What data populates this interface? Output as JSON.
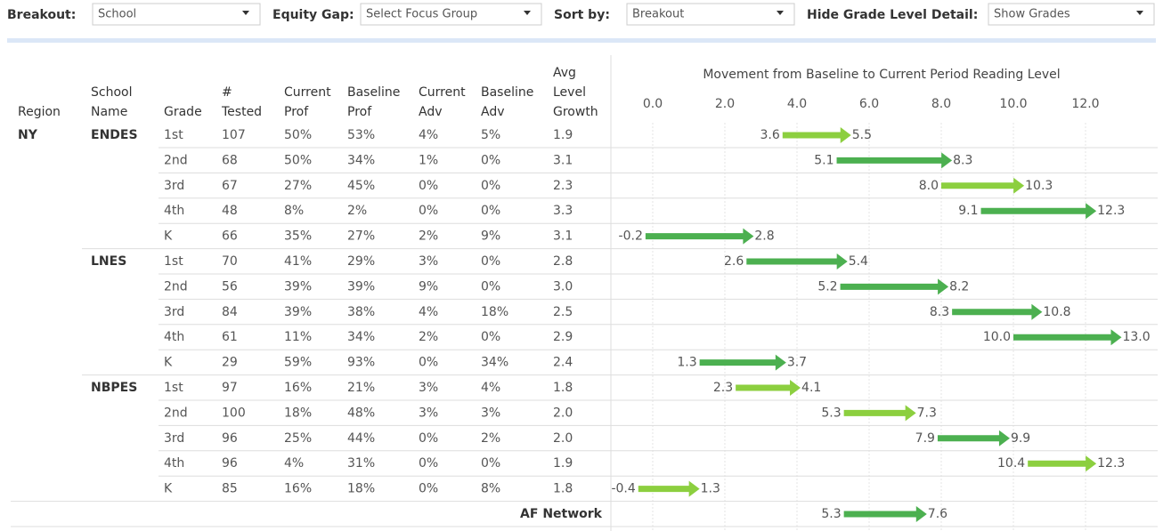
{
  "filters": [
    {
      "label": "Breakout:",
      "value": "School"
    },
    {
      "label": "Equity Gap:",
      "value": "Select Focus Group"
    },
    {
      "label": "Sort by:",
      "value": "Breakout"
    },
    {
      "label": "Hide Grade Level Detail:",
      "value": "Show Grades"
    }
  ],
  "table": {
    "columns": [
      [
        "Region"
      ],
      [
        "School",
        "Name"
      ],
      [
        "Grade"
      ],
      [
        "#",
        "Tested"
      ],
      [
        "Current",
        "Prof"
      ],
      [
        "Baseline",
        "Prof"
      ],
      [
        "Current",
        "Adv"
      ],
      [
        "Baseline",
        "Adv"
      ],
      [
        "Avg",
        "Level",
        "Growth"
      ]
    ],
    "rows": [
      {
        "region": "NY",
        "school": "ENDES",
        "grade": "1st",
        "tested": "107",
        "cur_prof": "50%",
        "base_prof": "53%",
        "cur_adv": "4%",
        "base_adv": "5%",
        "growth": "1.9",
        "start": "3.6",
        "end": "5.5",
        "color": "#8ccf3f"
      },
      {
        "grade": "2nd",
        "tested": "68",
        "cur_prof": "50%",
        "base_prof": "34%",
        "cur_adv": "1%",
        "base_adv": "0%",
        "growth": "3.1",
        "start": "5.1",
        "end": "8.3",
        "color": "#4cb050"
      },
      {
        "grade": "3rd",
        "tested": "67",
        "cur_prof": "27%",
        "base_prof": "45%",
        "cur_adv": "0%",
        "base_adv": "0%",
        "growth": "2.3",
        "start": "8.0",
        "end": "10.3",
        "color": "#8ccf3f"
      },
      {
        "grade": "4th",
        "tested": "48",
        "cur_prof": "8%",
        "base_prof": "2%",
        "cur_adv": "0%",
        "base_adv": "0%",
        "growth": "3.3",
        "start": "9.1",
        "end": "12.3",
        "color": "#4cb050"
      },
      {
        "grade": "K",
        "tested": "66",
        "cur_prof": "35%",
        "base_prof": "27%",
        "cur_adv": "2%",
        "base_adv": "9%",
        "growth": "3.1",
        "start": "-0.2",
        "end": "2.8",
        "color": "#4cb050"
      },
      {
        "school": "LNES",
        "grade": "1st",
        "tested": "70",
        "cur_prof": "41%",
        "base_prof": "29%",
        "cur_adv": "3%",
        "base_adv": "0%",
        "growth": "2.8",
        "start": "2.6",
        "end": "5.4",
        "color": "#4cb050"
      },
      {
        "grade": "2nd",
        "tested": "56",
        "cur_prof": "39%",
        "base_prof": "39%",
        "cur_adv": "9%",
        "base_adv": "0%",
        "growth": "3.0",
        "start": "5.2",
        "end": "8.2",
        "color": "#4cb050"
      },
      {
        "grade": "3rd",
        "tested": "84",
        "cur_prof": "39%",
        "base_prof": "38%",
        "cur_adv": "4%",
        "base_adv": "18%",
        "growth": "2.5",
        "start": "8.3",
        "end": "10.8",
        "color": "#4cb050"
      },
      {
        "grade": "4th",
        "tested": "61",
        "cur_prof": "11%",
        "base_prof": "34%",
        "cur_adv": "2%",
        "base_adv": "0%",
        "growth": "2.9",
        "start": "10.0",
        "end": "13.0",
        "color": "#4cb050"
      },
      {
        "grade": "K",
        "tested": "29",
        "cur_prof": "59%",
        "base_prof": "93%",
        "cur_adv": "0%",
        "base_adv": "34%",
        "growth": "2.4",
        "start": "1.3",
        "end": "3.7",
        "color": "#4cb050"
      },
      {
        "school": "NBPES",
        "grade": "1st",
        "tested": "97",
        "cur_prof": "16%",
        "base_prof": "21%",
        "cur_adv": "3%",
        "base_adv": "4%",
        "growth": "1.8",
        "start": "2.3",
        "end": "4.1",
        "color": "#8ccf3f"
      },
      {
        "grade": "2nd",
        "tested": "100",
        "cur_prof": "18%",
        "base_prof": "48%",
        "cur_adv": "3%",
        "base_adv": "3%",
        "growth": "2.0",
        "start": "5.3",
        "end": "7.3",
        "color": "#8ccf3f"
      },
      {
        "grade": "3rd",
        "tested": "96",
        "cur_prof": "25%",
        "base_prof": "44%",
        "cur_adv": "0%",
        "base_adv": "2%",
        "growth": "2.0",
        "start": "7.9",
        "end": "9.9",
        "color": "#4cb050"
      },
      {
        "grade": "4th",
        "tested": "96",
        "cur_prof": "4%",
        "base_prof": "31%",
        "cur_adv": "0%",
        "base_adv": "0%",
        "growth": "1.9",
        "start": "10.4",
        "end": "12.3",
        "color": "#8ccf3f"
      },
      {
        "grade": "K",
        "tested": "85",
        "cur_prof": "16%",
        "base_prof": "18%",
        "cur_adv": "0%",
        "base_adv": "8%",
        "growth": "1.8",
        "start": "-0.4",
        "end": "1.3",
        "color": "#8ccf3f"
      }
    ],
    "total": {
      "label": "AF Network",
      "start": "5.3",
      "end": "7.6",
      "color": "#4cb050"
    }
  },
  "chart": {
    "title": "Movement from Baseline to Current Period Reading Level",
    "xticks": [
      "0.0",
      "2.0",
      "4.0",
      "6.0",
      "8.0",
      "10.0",
      "12.0"
    ],
    "xlim": [
      -1.16,
      14
    ]
  }
}
